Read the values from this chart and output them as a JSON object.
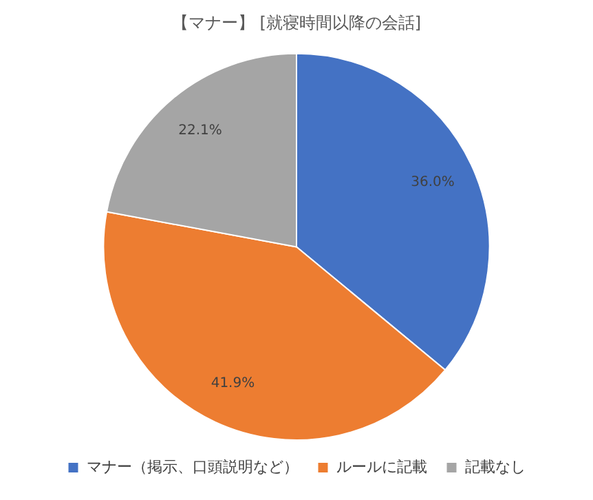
{
  "chart_data": {
    "type": "pie",
    "title": "【マナー】 [就寝時間以降の会話]",
    "categories": [
      "マナー（掲示、口頭説明など）",
      "ルールに記載",
      "記載なし"
    ],
    "values": [
      36.0,
      41.9,
      22.1
    ],
    "value_labels": [
      "36.0%",
      "41.9%",
      "22.1%"
    ],
    "colors": [
      "#4472c4",
      "#ed7d31",
      "#a5a5a5"
    ],
    "legend": "bottom"
  }
}
